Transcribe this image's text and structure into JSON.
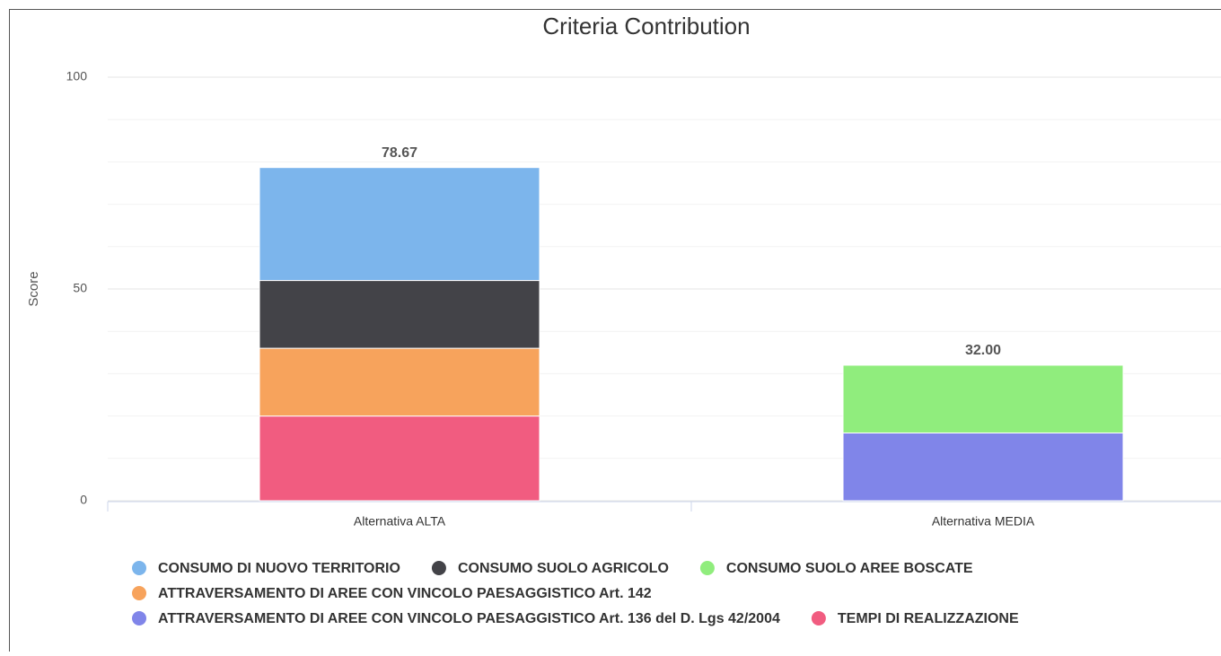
{
  "chart_data": {
    "type": "stacked_bar",
    "title": "Criteria Contribution",
    "y_label": "Score",
    "categories": [
      "Alternativa ALTA",
      "Alternativa MEDIA"
    ],
    "series": [
      {
        "name": "CONSUMO DI NUOVO TERRITORIO",
        "color": "#7cb5ec",
        "values": [
          26.67,
          0
        ]
      },
      {
        "name": "CONSUMO SUOLO AGRICOLO",
        "color": "#434348",
        "values": [
          16,
          0
        ]
      },
      {
        "name": "CONSUMO SUOLO AREE BOSCATE",
        "color": "#90ed7d",
        "values": [
          0,
          16
        ]
      },
      {
        "name": "ATTRAVERSAMENTO DI AREE CON VINCOLO PAESAGGISTICO Art. 142",
        "color": "#f7a35c",
        "values": [
          16,
          0
        ]
      },
      {
        "name": "ATTRAVERSAMENTO DI AREE CON VINCOLO PAESAGGISTICO Art. 136 del D. Lgs 42/2004",
        "color": "#8085e9",
        "values": [
          0,
          16
        ]
      },
      {
        "name": "TEMPI DI REALIZZAZIONE",
        "color": "#f15c80",
        "values": [
          20,
          0
        ]
      }
    ],
    "stack_totals": [
      78.67,
      32.0
    ],
    "stack_total_labels": [
      "78.67",
      "32.00"
    ],
    "ylim": [
      0,
      100
    ],
    "yticks": [
      0,
      50,
      100
    ],
    "minor_yticks": [
      10,
      20,
      30,
      40,
      60,
      70,
      80,
      90
    ],
    "grid": true
  }
}
